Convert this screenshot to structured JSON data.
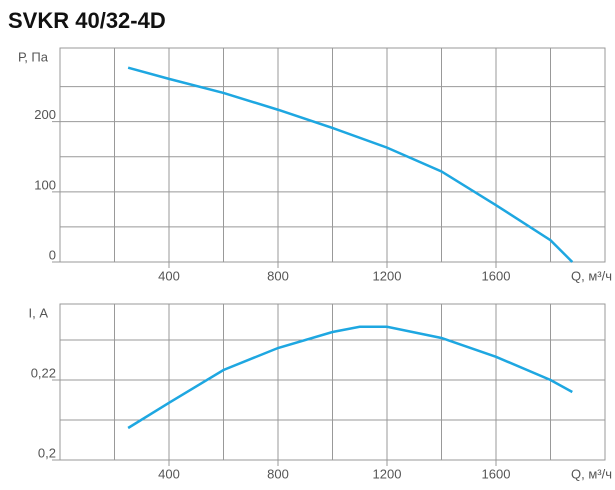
{
  "title": "SVKR 40/32-4D",
  "chart_data": [
    {
      "type": "line",
      "y_label": "Р, Па",
      "x_label": "Q, м³/ч",
      "x": [
        250,
        400,
        600,
        800,
        1000,
        1200,
        1400,
        1600,
        1800,
        1880
      ],
      "series": [
        {
          "color": "#1ea7e1",
          "values": [
            277,
            261,
            241,
            217,
            191,
            163,
            129,
            81,
            31,
            0
          ]
        }
      ],
      "xlim": [
        0,
        2000
      ],
      "xticks": [
        400,
        800,
        1200,
        1600
      ],
      "minor_xticks": [
        200,
        600,
        1000,
        1400,
        1800
      ],
      "ylim": [
        0,
        305
      ],
      "yticks": [
        0,
        100,
        200
      ],
      "minor_yticks": [
        50,
        150,
        250
      ],
      "grid": true
    },
    {
      "type": "line",
      "y_label": "I, А",
      "x_label": "Q, м³/ч",
      "x": [
        250,
        400,
        600,
        800,
        1000,
        1100,
        1200,
        1400,
        1600,
        1800,
        1880
      ],
      "series": [
        {
          "color": "#1ea7e1",
          "values": [
            0.208,
            0.2143,
            0.2225,
            0.228,
            0.232,
            0.2333,
            0.2333,
            0.2305,
            0.2258,
            0.22,
            0.217
          ]
        }
      ],
      "xlim": [
        0,
        2000
      ],
      "xticks": [
        400,
        800,
        1200,
        1600
      ],
      "minor_xticks": [
        200,
        600,
        1000,
        1400,
        1800
      ],
      "ylim": [
        0.2,
        0.239
      ],
      "yticks": [
        {
          "value": 0.2,
          "label": "0,2"
        },
        {
          "value": 0.22,
          "label": "0,22"
        }
      ],
      "minor_yticks": [
        0.21,
        0.23
      ],
      "grid": true
    }
  ]
}
